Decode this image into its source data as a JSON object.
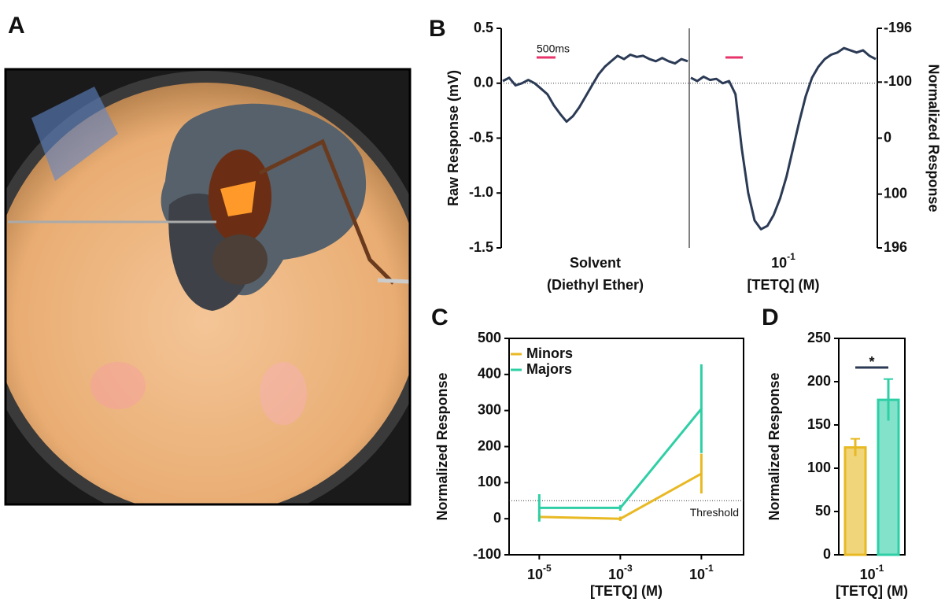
{
  "chart_data": [
    {
      "type": "image",
      "panel": "A"
    },
    {
      "type": "trace",
      "panel": "B",
      "ylabel": "Raw Response (mV)",
      "y2label": "Normalized Response",
      "ylim": [
        -1.5,
        0.5
      ],
      "yticks": [
        -1.5,
        {
          "value": -1.0,
          "label": "-1.0"
        },
        -0.5,
        {
          "value": 0.0,
          "label": "0.0"
        },
        0.5
      ],
      "y2lim": [
        196,
        -196
      ],
      "y2ticks": [
        -196,
        -100,
        0,
        100,
        196
      ],
      "reference_line": 0,
      "scale_bar_label": "500ms",
      "color": "#2b3a55",
      "traces": [
        {
          "labels": [
            "Solvent",
            "(Diethyl Ether)"
          ],
          "values": [
            0.02,
            0.05,
            -0.02,
            0.0,
            0.03,
            0.0,
            -0.05,
            -0.1,
            -0.2,
            -0.28,
            -0.35,
            -0.3,
            -0.22,
            -0.12,
            -0.02,
            0.08,
            0.15,
            0.2,
            0.25,
            0.22,
            0.26,
            0.24,
            0.25,
            0.22,
            0.2,
            0.23,
            0.2,
            0.18,
            0.22,
            0.2
          ]
        },
        {
          "labels": [
            {
              "label": "10",
              "exponent": "-1"
            },
            "[TETQ] (M)"
          ],
          "values": [
            0.05,
            0.02,
            0.06,
            0.03,
            0.04,
            0.0,
            0.02,
            -0.1,
            -0.6,
            -1.0,
            -1.25,
            -1.33,
            -1.3,
            -1.2,
            -1.05,
            -0.85,
            -0.6,
            -0.35,
            -0.12,
            0.05,
            0.15,
            0.22,
            0.26,
            0.28,
            0.32,
            0.3,
            0.28,
            0.3,
            0.25,
            0.22
          ]
        }
      ]
    },
    {
      "type": "line",
      "panel": "C",
      "xlabel": "[TETQ] (M)",
      "ylabel": "Normalized Response",
      "xscale": "log",
      "xlim": [
        1.8e-06,
        1.1
      ],
      "xticks": [
        {
          "value": 1e-05,
          "label": "10",
          "exponent": "-5"
        },
        {
          "value": 0.001,
          "label": "10",
          "exponent": "-3"
        },
        {
          "value": 0.1,
          "label": "10",
          "exponent": "-1"
        }
      ],
      "ylim": [
        -100,
        500
      ],
      "yticks": [
        -100,
        0,
        100,
        200,
        300,
        400,
        500
      ],
      "x": [
        1e-05,
        0.001,
        0.1
      ],
      "threshold": 50,
      "threshold_label": "Threshold",
      "legend": "upper left",
      "series": [
        {
          "name": "Minors",
          "color": "#e8b923",
          "values": [
            5,
            0,
            125
          ],
          "errors": [
            8,
            6,
            55
          ]
        },
        {
          "name": "Majors",
          "color": "#2fcfa6",
          "values": [
            30,
            30,
            305
          ],
          "errors": [
            38,
            8,
            123
          ]
        }
      ]
    },
    {
      "type": "bar",
      "panel": "D",
      "xlabel": "[TETQ] (M)",
      "ylabel": "Normalized Response",
      "categories": [
        {
          "label": "10",
          "exponent": "-1"
        }
      ],
      "ylim": [
        0,
        250
      ],
      "yticks": [
        0,
        50,
        100,
        150,
        200,
        250
      ],
      "annotation": "*",
      "series": [
        {
          "color": "#e8b923",
          "values": [
            124
          ],
          "errors": [
            10
          ]
        },
        {
          "color": "#2fcfa6",
          "values": [
            179
          ],
          "errors": [
            24
          ]
        }
      ]
    }
  ]
}
